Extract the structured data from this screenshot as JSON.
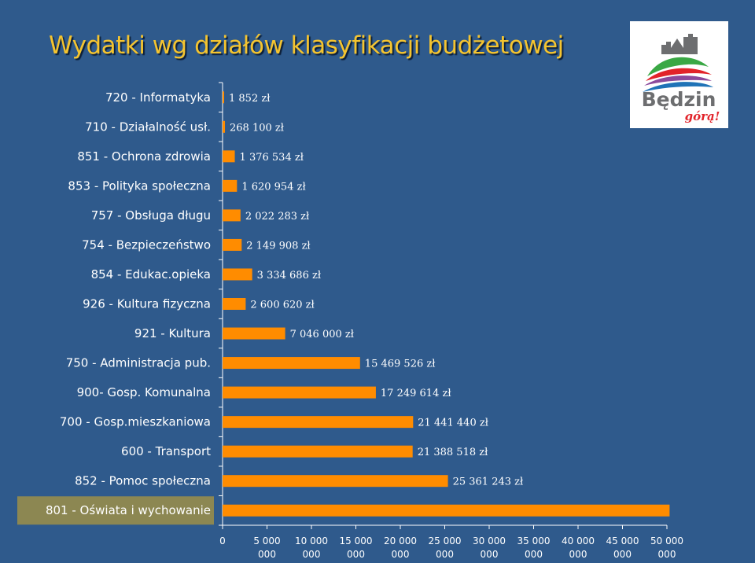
{
  "title": "Wydatki wg działów klasyfikacji budżetowej",
  "logo": {
    "text": "Będzin",
    "tagline": "górą!"
  },
  "colors": {
    "background": "#2f5a8c",
    "title": "#f4c430",
    "bar": "#ff8c00",
    "highlight_label_bg": "#8c8752"
  },
  "chart_data": {
    "type": "bar",
    "orientation": "horizontal",
    "categories": [
      "720 - Informatyka",
      "710 - Działalność usł.",
      "851 - Ochrona zdrowia",
      "853 - Polityka społeczna",
      "757 - Obsługa długu",
      "754 - Bezpieczeństwo",
      "854 - Edukac.opieka",
      "926 - Kultura fizyczna",
      "921 - Kultura",
      "750 - Administracja pub.",
      "900- Gosp. Komunalna",
      "700 - Gosp.mieszkaniowa",
      "600 - Transport",
      "852 - Pomoc społeczna",
      "801 - Oświata i wychowanie"
    ],
    "values": [
      1852,
      268100,
      1376534,
      1620954,
      2022283,
      2149908,
      3334686,
      2600620,
      7046000,
      15469526,
      17249614,
      21441440,
      21388518,
      25361243,
      50300000
    ],
    "data_labels": [
      "1 852 zł",
      "268 100 zł",
      "1 376 534 zł",
      "1 620 954 zł",
      "2 022 283 zł",
      "2 149 908 zł",
      "3 334 686 zł",
      "2 600 620 zł",
      "7 046 000 zł",
      "15 469 526 zł",
      "17 249 614 zł",
      "21 441 440 zł",
      "21 388 518 zł",
      "25 361 243 zł",
      ""
    ],
    "highlighted_category": "801 - Oświata i wychowanie",
    "xlim": [
      0,
      50000000
    ],
    "x_ticks": [
      [
        "0"
      ],
      [
        "5 000",
        "000"
      ],
      [
        "10 000",
        "000"
      ],
      [
        "15 000",
        "000"
      ],
      [
        "20 000",
        "000"
      ],
      [
        "25 000",
        "000"
      ],
      [
        "30 000",
        "000"
      ],
      [
        "35 000",
        "000"
      ],
      [
        "40 000",
        "000"
      ],
      [
        "45 000",
        "000"
      ],
      [
        "50 000",
        "000"
      ]
    ],
    "grid": false
  }
}
